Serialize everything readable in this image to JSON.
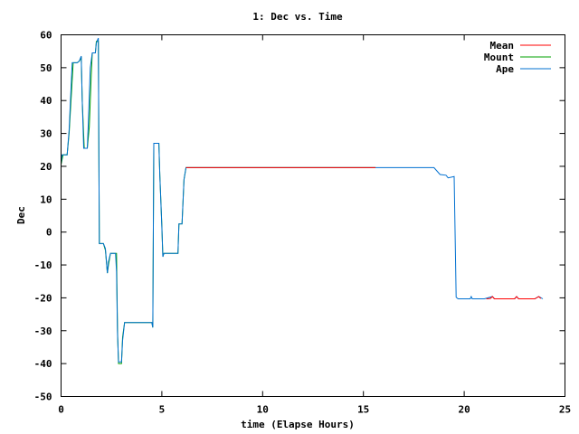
{
  "chart_data": {
    "type": "line",
    "title": "1: Dec vs. Time",
    "xlabel": "time (Elapse Hours)",
    "ylabel": "Dec",
    "xlim": [
      0,
      25
    ],
    "ylim": [
      -50,
      60
    ],
    "xticks": [
      0,
      5,
      10,
      15,
      20,
      25
    ],
    "yticks": [
      -50,
      -40,
      -30,
      -20,
      -10,
      0,
      10,
      20,
      30,
      40,
      50,
      60
    ],
    "grid": false,
    "legend_position": "top-right",
    "series": [
      {
        "name": "Mean",
        "color": "#ff0000",
        "points": [
          [
            6.2,
            19.6
          ],
          [
            15.6,
            19.6
          ],
          null,
          [
            21.1,
            -20.3
          ],
          [
            21.3,
            -20.2
          ],
          [
            21.4,
            -19.6
          ],
          [
            21.5,
            -20.3
          ],
          [
            22.5,
            -20.3
          ],
          [
            22.6,
            -19.6
          ],
          [
            22.7,
            -20.3
          ],
          [
            23.5,
            -20.3
          ],
          [
            23.7,
            -19.6
          ],
          [
            23.8,
            -20.2
          ]
        ]
      },
      {
        "name": "Mount",
        "color": "#00a000",
        "points": [
          [
            0.0,
            20.5
          ],
          [
            0.1,
            23.5
          ],
          [
            0.3,
            23.5
          ],
          [
            0.4,
            30.0
          ],
          [
            0.6,
            51.5
          ],
          [
            0.8,
            51.5
          ],
          [
            0.9,
            52.0
          ],
          [
            1.0,
            53.0
          ],
          [
            1.05,
            40.0
          ],
          [
            1.15,
            25.5
          ],
          [
            1.3,
            25.5
          ],
          [
            1.4,
            32.0
          ],
          [
            1.5,
            48.0
          ],
          [
            1.55,
            54.5
          ],
          [
            1.7,
            54.5
          ],
          [
            1.75,
            58.0
          ],
          [
            1.85,
            58.0
          ],
          [
            1.9,
            -3.5
          ],
          [
            2.1,
            -3.5
          ],
          [
            2.2,
            -5.5
          ],
          [
            2.3,
            -12.5
          ],
          [
            2.35,
            -10.0
          ],
          [
            2.45,
            -6.5
          ],
          [
            2.75,
            -6.5
          ],
          [
            2.8,
            -30.0
          ],
          [
            2.85,
            -40.0
          ],
          [
            3.0,
            -40.0
          ],
          [
            3.05,
            -32.0
          ],
          [
            3.15,
            -27.5
          ],
          [
            4.5,
            -27.5
          ],
          [
            4.55,
            -29.0
          ],
          [
            4.6,
            27.0
          ],
          [
            4.85,
            27.0
          ],
          [
            4.9,
            17.0
          ],
          [
            5.0,
            2.0
          ],
          [
            5.05,
            -7.5
          ],
          [
            5.1,
            -6.5
          ],
          [
            5.8,
            -6.5
          ],
          [
            5.85,
            2.5
          ],
          [
            6.0,
            2.5
          ],
          [
            6.1,
            16.0
          ],
          [
            6.2,
            19.6
          ],
          [
            15.6,
            19.6
          ]
        ]
      },
      {
        "name": "Ape",
        "color": "#0070d0",
        "points": [
          [
            0.0,
            20.8
          ],
          [
            0.05,
            23.5
          ],
          [
            0.3,
            23.5
          ],
          [
            0.4,
            31.0
          ],
          [
            0.55,
            51.5
          ],
          [
            0.8,
            51.5
          ],
          [
            0.9,
            52.0
          ],
          [
            1.0,
            53.5
          ],
          [
            1.05,
            40.0
          ],
          [
            1.12,
            25.5
          ],
          [
            1.3,
            25.5
          ],
          [
            1.35,
            33.0
          ],
          [
            1.45,
            50.0
          ],
          [
            1.55,
            54.5
          ],
          [
            1.7,
            54.5
          ],
          [
            1.75,
            57.5
          ],
          [
            1.85,
            59.0
          ],
          [
            1.9,
            -3.5
          ],
          [
            2.1,
            -3.5
          ],
          [
            2.2,
            -5.0
          ],
          [
            2.3,
            -12.5
          ],
          [
            2.35,
            -9.0
          ],
          [
            2.45,
            -6.5
          ],
          [
            2.7,
            -6.5
          ],
          [
            2.75,
            -12.0
          ],
          [
            2.8,
            -31.0
          ],
          [
            2.85,
            -39.5
          ],
          [
            3.0,
            -39.5
          ],
          [
            3.05,
            -33.0
          ],
          [
            3.15,
            -27.5
          ],
          [
            4.5,
            -27.5
          ],
          [
            4.55,
            -29.0
          ],
          [
            4.6,
            27.0
          ],
          [
            4.85,
            27.0
          ],
          [
            4.9,
            17.0
          ],
          [
            5.0,
            1.5
          ],
          [
            5.05,
            -7.5
          ],
          [
            5.1,
            -6.5
          ],
          [
            5.8,
            -6.5
          ],
          [
            5.85,
            2.5
          ],
          [
            6.0,
            2.5
          ],
          [
            6.1,
            16.0
          ],
          [
            6.2,
            19.6
          ],
          [
            18.5,
            19.6
          ],
          [
            18.8,
            17.5
          ],
          [
            19.1,
            17.3
          ],
          [
            19.2,
            16.5
          ],
          [
            19.5,
            16.9
          ],
          [
            19.6,
            -19.8
          ],
          [
            19.7,
            -20.3
          ],
          [
            20.3,
            -20.3
          ],
          [
            20.35,
            -19.6
          ],
          [
            20.4,
            -20.3
          ],
          [
            21.0,
            -20.3
          ],
          [
            21.4,
            -19.6
          ],
          [
            21.5,
            -20.3
          ],
          [
            22.5,
            -20.3
          ],
          [
            22.6,
            -19.6
          ],
          [
            22.7,
            -20.3
          ],
          [
            23.5,
            -20.3
          ],
          [
            23.7,
            -19.6
          ],
          [
            23.9,
            -20.3
          ]
        ]
      }
    ]
  }
}
